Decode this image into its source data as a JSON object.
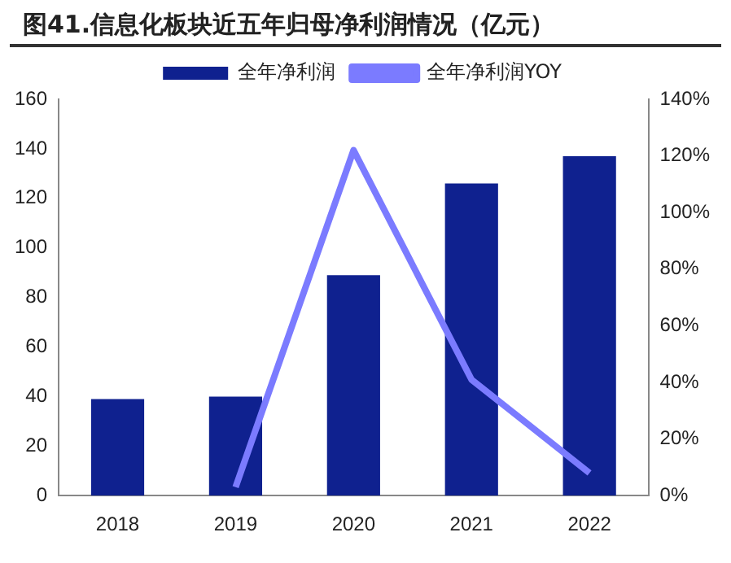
{
  "chart_data": {
    "type": "bar",
    "title": "图41.信息化板块近五年归母净利润情况（亿元）",
    "categories": [
      "2018",
      "2019",
      "2020",
      "2021",
      "2022"
    ],
    "series": [
      {
        "name": "全年净利润",
        "color": "#0f218f",
        "values": [
          39,
          40,
          89,
          126,
          137
        ]
      },
      {
        "name": "全年净利润YOY",
        "type": "line",
        "axis": "y2",
        "color": "#7b7bff",
        "values": [
          null,
          3,
          122,
          41,
          8
        ]
      }
    ],
    "ylim": [
      0,
      160
    ],
    "yticks": [
      0,
      20,
      40,
      60,
      80,
      100,
      120,
      140,
      160
    ],
    "y2lim": [
      0,
      140
    ],
    "y2ticks": [
      {
        "value": 0,
        "label": "0%"
      },
      {
        "value": 20,
        "label": "20%"
      },
      {
        "value": 40,
        "label": "40%"
      },
      {
        "value": 60,
        "label": "60%"
      },
      {
        "value": 80,
        "label": "80%"
      },
      {
        "value": 100,
        "label": "100%"
      },
      {
        "value": 120,
        "label": "120%"
      },
      {
        "value": 140,
        "label": "140%"
      }
    ],
    "grid": false,
    "legend": "top",
    "marker": "none"
  }
}
